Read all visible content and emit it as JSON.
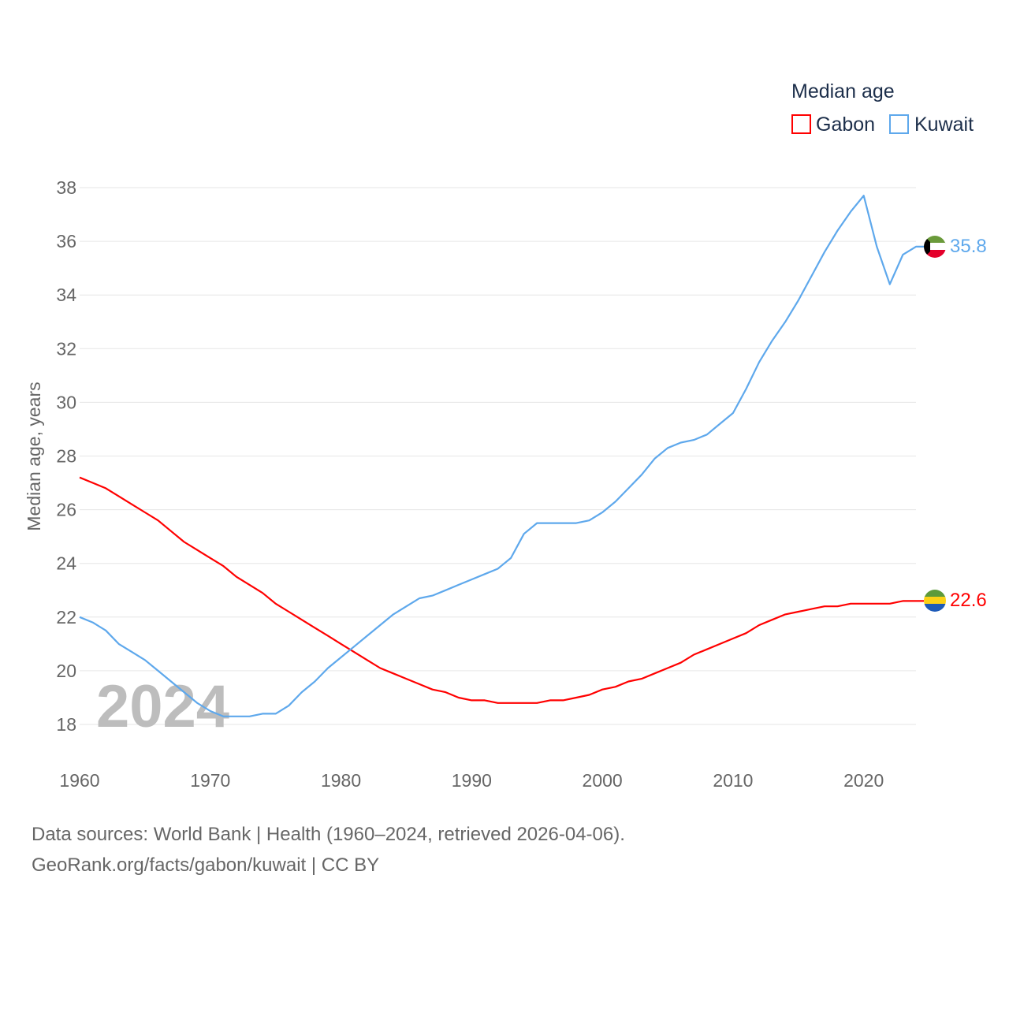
{
  "chart_data": {
    "type": "line",
    "title": "",
    "legend_title": "Median age",
    "legend_placement": "top-right",
    "ylabel": "Median age, years",
    "xlabel": "",
    "ylim": [
      18,
      38
    ],
    "xlim": [
      1960,
      2024
    ],
    "yticks": [
      "18",
      "20",
      "22",
      "24",
      "26",
      "28",
      "30",
      "32",
      "34",
      "36",
      "38"
    ],
    "xticks": [
      "1960",
      "1970",
      "1980",
      "1990",
      "2000",
      "2010",
      "2020"
    ],
    "watermark_year": "2024",
    "x": [
      1960,
      1961,
      1962,
      1963,
      1964,
      1965,
      1966,
      1967,
      1968,
      1969,
      1970,
      1971,
      1972,
      1973,
      1974,
      1975,
      1976,
      1977,
      1978,
      1979,
      1980,
      1981,
      1982,
      1983,
      1984,
      1985,
      1986,
      1987,
      1988,
      1989,
      1990,
      1991,
      1992,
      1993,
      1994,
      1995,
      1996,
      1997,
      1998,
      1999,
      2000,
      2001,
      2002,
      2003,
      2004,
      2005,
      2006,
      2007,
      2008,
      2009,
      2010,
      2011,
      2012,
      2013,
      2014,
      2015,
      2016,
      2017,
      2018,
      2019,
      2020,
      2021,
      2022,
      2023,
      2024
    ],
    "series": [
      {
        "name": "Gabon",
        "color": "#ff0000",
        "end_label": "22.6",
        "flag": "gabon-flag",
        "values": [
          27.2,
          27.0,
          26.8,
          26.5,
          26.2,
          25.9,
          25.6,
          25.2,
          24.8,
          24.5,
          24.2,
          23.9,
          23.5,
          23.2,
          22.9,
          22.5,
          22.2,
          21.9,
          21.6,
          21.3,
          21.0,
          20.7,
          20.4,
          20.1,
          19.9,
          19.7,
          19.5,
          19.3,
          19.2,
          19.0,
          18.9,
          18.9,
          18.8,
          18.8,
          18.8,
          18.8,
          18.9,
          18.9,
          19.0,
          19.1,
          19.3,
          19.4,
          19.6,
          19.7,
          19.9,
          20.1,
          20.3,
          20.6,
          20.8,
          21.0,
          21.2,
          21.4,
          21.7,
          21.9,
          22.1,
          22.2,
          22.3,
          22.4,
          22.4,
          22.5,
          22.5,
          22.5,
          22.5,
          22.6,
          22.6
        ]
      },
      {
        "name": "Kuwait",
        "color": "#5ea8ec",
        "end_label": "35.8",
        "flag": "kuwait-flag",
        "values": [
          22.0,
          21.8,
          21.5,
          21.0,
          20.7,
          20.4,
          20.0,
          19.6,
          19.2,
          18.8,
          18.5,
          18.3,
          18.3,
          18.3,
          18.4,
          18.4,
          18.7,
          19.2,
          19.6,
          20.1,
          20.5,
          20.9,
          21.3,
          21.7,
          22.1,
          22.4,
          22.7,
          22.8,
          23.0,
          23.2,
          23.4,
          23.6,
          23.8,
          24.2,
          25.1,
          25.5,
          25.5,
          25.5,
          25.5,
          25.6,
          25.9,
          26.3,
          26.8,
          27.3,
          27.9,
          28.3,
          28.5,
          28.6,
          28.8,
          29.2,
          29.6,
          30.5,
          31.5,
          32.3,
          33.0,
          33.8,
          34.7,
          35.6,
          36.4,
          37.1,
          37.7,
          35.8,
          34.4,
          35.5,
          35.8
        ]
      }
    ]
  },
  "footer": {
    "line1": "Data sources: World Bank | Health (1960–2024, retrieved 2026-04-06).",
    "line2": "GeoRank.org/facts/gabon/kuwait | CC BY"
  }
}
